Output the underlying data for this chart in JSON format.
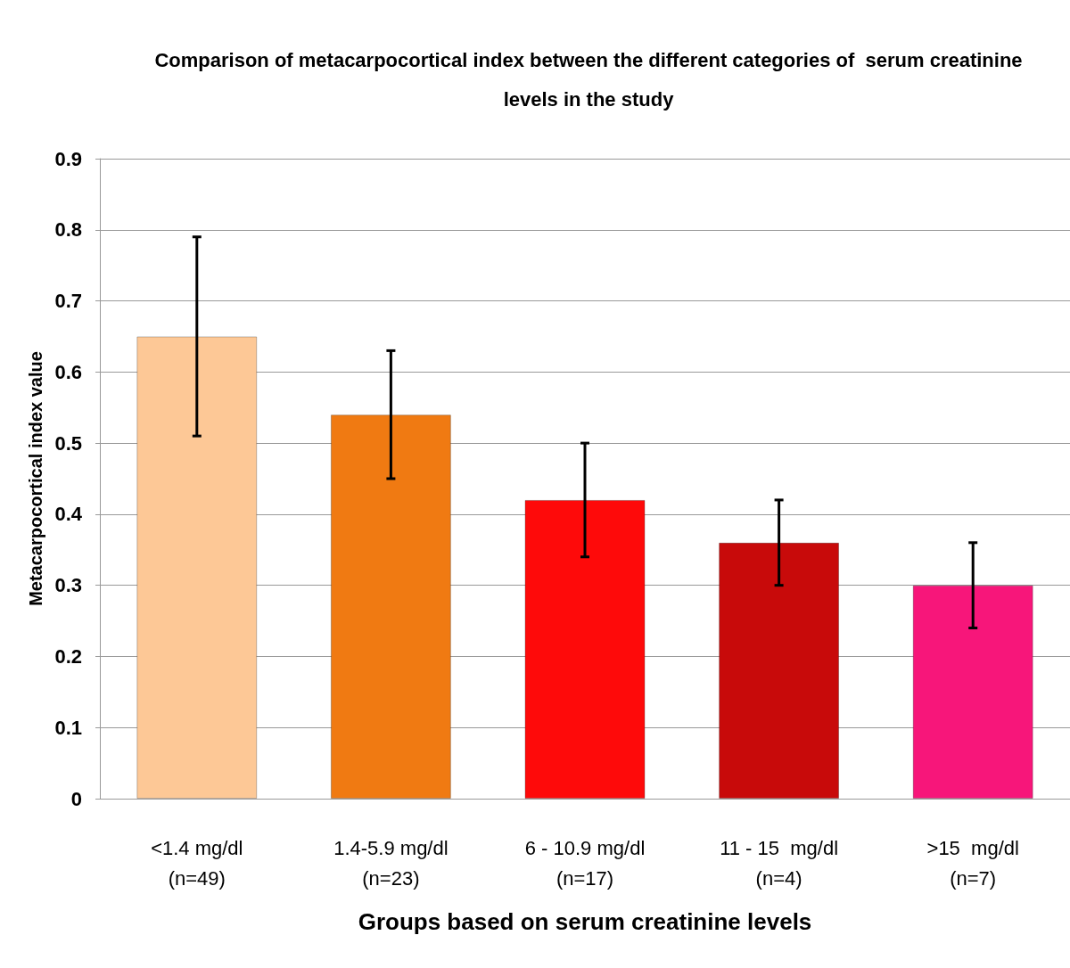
{
  "chart_data": {
    "type": "bar",
    "title": "Comparison of metacarpocortical index between the different categories of  serum creatinine\nlevels in the study",
    "xlabel": "Groups based on serum creatinine levels",
    "ylabel": "Metacarpocortical index value",
    "categories": [
      "<1.4 mg/dl\n(n=49)",
      "1.4-5.9 mg/dl\n(n=23)",
      "6 - 10.9 mg/dl\n(n=17)",
      "11 - 15  mg/dl\n(n=4)",
      ">15  mg/dl\n(n=7)"
    ],
    "values": [
      0.65,
      0.54,
      0.42,
      0.36,
      0.3
    ],
    "colors": [
      "#fdc896",
      "#f07a12",
      "#fe0a0a",
      "#c80a0a",
      "#f7167a"
    ],
    "errors": [
      [
        0.51,
        0.79
      ],
      [
        0.45,
        0.63
      ],
      [
        0.34,
        0.5
      ],
      [
        0.3,
        0.42
      ],
      [
        0.24,
        0.36
      ]
    ],
    "ylim": [
      0,
      0.9
    ],
    "yticks": [
      0,
      0.1,
      0.2,
      0.3,
      0.4,
      0.5,
      0.6,
      0.7,
      0.8,
      0.9
    ],
    "grid": "y"
  }
}
